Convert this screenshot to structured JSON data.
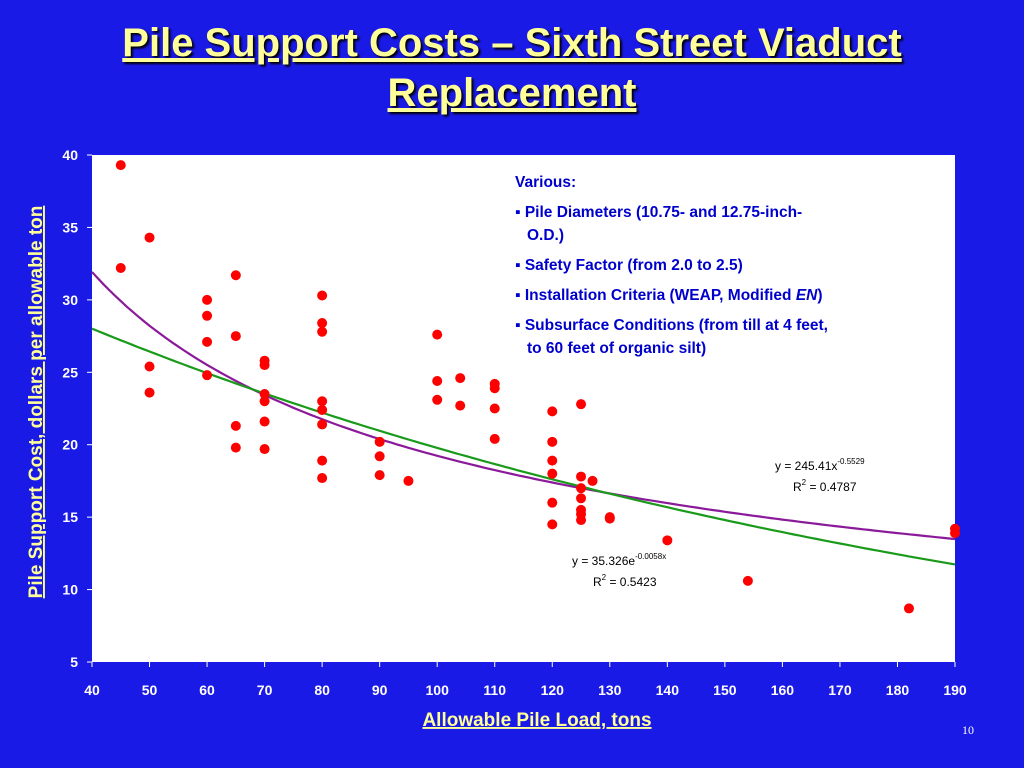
{
  "slide": {
    "title_line1": "Pile Support Costs – Sixth Street Viaduct",
    "title_line2": "Replacement",
    "page_number": "10"
  },
  "colors": {
    "background": "#1a1ae6",
    "title": "#ffff99",
    "plot_background": "#ffffff",
    "points": "#ff0000",
    "power_trend": "#8b1a9a",
    "exp_trend": "#1a9a1a",
    "note_text": "#0000cc"
  },
  "note": {
    "heading": "Various:",
    "bullets": [
      "Pile Diameters (10.75- and 12.75-inch-",
      "O.D.)",
      "Safety Factor (from 2.0 to 2.5)",
      "Installation Criteria (WEAP, Modified ",
      "EN",
      ")",
      "Subsurface Conditions (from till at 4 feet,",
      "to 60 feet of organic silt)"
    ]
  },
  "chart_data": {
    "type": "scatter",
    "xlabel": "Allowable Pile Load, tons",
    "ylabel": "Pile Support Cost, dollars per allowable ton",
    "xlim": [
      40,
      190
    ],
    "ylim": [
      5,
      40
    ],
    "xticks": [
      40,
      50,
      60,
      70,
      80,
      90,
      100,
      110,
      120,
      130,
      140,
      150,
      160,
      170,
      180,
      190
    ],
    "yticks": [
      5,
      10,
      15,
      20,
      25,
      30,
      35,
      40
    ],
    "grid": false,
    "legend": "none",
    "points": [
      [
        45,
        39.3
      ],
      [
        45,
        32.2
      ],
      [
        50,
        34.3
      ],
      [
        50,
        25.4
      ],
      [
        50,
        23.6
      ],
      [
        60,
        30.0
      ],
      [
        60,
        28.9
      ],
      [
        60,
        27.1
      ],
      [
        60,
        24.8
      ],
      [
        65,
        31.7
      ],
      [
        65,
        27.5
      ],
      [
        65,
        21.3
      ],
      [
        65,
        19.8
      ],
      [
        70,
        25.8
      ],
      [
        70,
        25.5
      ],
      [
        70,
        23.5
      ],
      [
        70,
        23.0
      ],
      [
        70,
        21.6
      ],
      [
        70,
        19.7
      ],
      [
        80,
        30.3
      ],
      [
        80,
        28.4
      ],
      [
        80,
        27.8
      ],
      [
        80,
        23.0
      ],
      [
        80,
        22.4
      ],
      [
        80,
        21.4
      ],
      [
        80,
        18.9
      ],
      [
        80,
        17.7
      ],
      [
        90,
        20.2
      ],
      [
        90,
        19.2
      ],
      [
        90,
        17.9
      ],
      [
        95,
        17.5
      ],
      [
        100,
        27.6
      ],
      [
        100,
        24.4
      ],
      [
        100,
        23.1
      ],
      [
        104,
        24.6
      ],
      [
        104,
        22.7
      ],
      [
        110,
        24.2
      ],
      [
        110,
        23.9
      ],
      [
        110,
        22.5
      ],
      [
        110,
        20.4
      ],
      [
        120,
        22.3
      ],
      [
        120,
        20.2
      ],
      [
        120,
        18.9
      ],
      [
        120,
        18.0
      ],
      [
        120,
        16.0
      ],
      [
        120,
        14.5
      ],
      [
        125,
        22.8
      ],
      [
        125,
        17.8
      ],
      [
        125,
        17.0
      ],
      [
        125,
        16.3
      ],
      [
        125,
        15.5
      ],
      [
        125,
        15.2
      ],
      [
        125,
        14.8
      ],
      [
        127,
        17.5
      ],
      [
        130,
        15.0
      ],
      [
        130,
        14.9
      ],
      [
        140,
        13.4
      ],
      [
        154,
        10.6
      ],
      [
        182,
        8.7
      ],
      [
        190,
        14.2
      ],
      [
        190,
        13.9
      ]
    ],
    "trendlines": [
      {
        "kind": "power",
        "a": 245.41,
        "b": -0.5529,
        "equation_base": "y = 245.41x",
        "equation_exp": "-0.5529",
        "r2_prefix": "R",
        "r2_sup": "2",
        "r2_value": " = 0.4787"
      },
      {
        "kind": "exponential",
        "a": 35.326,
        "b": -0.0058,
        "equation_base": "y = 35.326e",
        "equation_exp": "-0.0058x",
        "r2_prefix": "R",
        "r2_sup": "2",
        "r2_value": " = 0.5423"
      }
    ]
  }
}
